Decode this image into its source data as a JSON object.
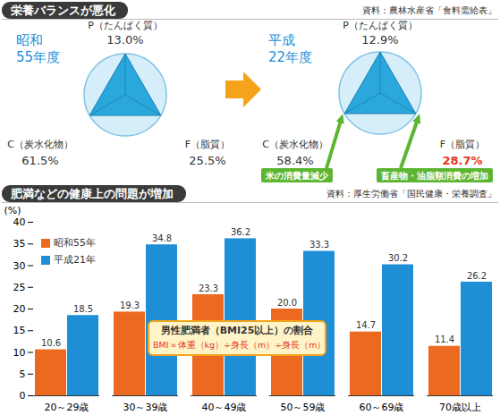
{
  "nutrition_balance": {
    "title": "栄養バランスが悪化",
    "source": "資料：農林水産省「食料需給表」",
    "panels": [
      {
        "label_lines": [
          "昭和",
          "55年度"
        ],
        "categories": [
          "P（たんぱく質）",
          "C（炭水化物）",
          "F（脂質）"
        ],
        "values": [
          13.0,
          61.5,
          25.5
        ],
        "value_labels": [
          "13.0%",
          "61.5%",
          "25.5%"
        ]
      },
      {
        "label_lines": [
          "平成",
          "22年度"
        ],
        "categories": [
          "P（たんぱく質）",
          "C（炭水化物）",
          "F（脂質）"
        ],
        "values": [
          12.9,
          58.4,
          28.7
        ],
        "value_labels": [
          "12.9%",
          "58.4%",
          "28.7%"
        ]
      }
    ],
    "annotations": [
      {
        "text": "米の消費量減少",
        "item": "C（炭水化物）"
      },
      {
        "text": "畜産物・油脂類消費の増加",
        "item": "F（脂質）"
      }
    ]
  },
  "chart_data": {
    "type": "bar",
    "title": "肥満などの健康上の問題が増加",
    "source": "資料：厚生労働省「国民健康・栄養調査」",
    "annotations": [
      "男性肥満者（BMI25以上）の割合",
      "BMI＝体重（kg）÷身長（m）÷身長（m）"
    ],
    "categories": [
      "20～29歳",
      "30～39歳",
      "40～49歳",
      "50～59歳",
      "60～69歳",
      "70歳以上"
    ],
    "series": [
      {
        "name": "昭和55年",
        "color": "#ec6a1f",
        "values": [
          10.6,
          19.3,
          23.3,
          20.0,
          14.7,
          11.4
        ],
        "value_labels": [
          "10.6",
          "19.3",
          "23.3",
          "20.0",
          "14.7",
          "11.4"
        ]
      },
      {
        "name": "平成21年",
        "color": "#1e8fd6",
        "values": [
          18.5,
          34.8,
          36.2,
          33.3,
          30.2,
          26.2
        ]
      }
    ],
    "ylabel": "(%)",
    "ylim": [
      0,
      40
    ],
    "yticks": [
      0,
      5,
      10,
      15,
      20,
      25,
      30,
      35,
      40
    ],
    "data_labels": true,
    "legend": "top-left",
    "grid": false
  }
}
